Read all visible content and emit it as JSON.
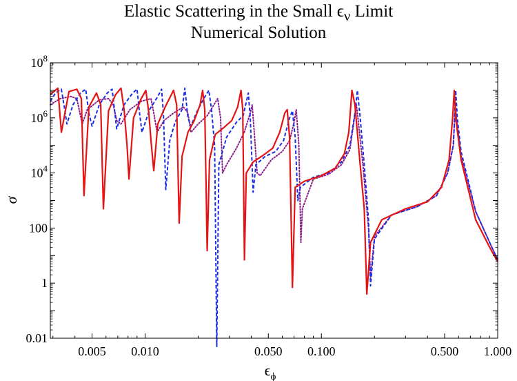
{
  "titles": {
    "line1_prefix": "Elastic Scattering in the Small ",
    "line1_symbol": "ϵ",
    "line1_sub": "ν",
    "line1_suffix": " Limit",
    "line2": "Numerical Solution"
  },
  "chart_data": {
    "type": "line",
    "title": "Elastic Scattering in the Small ϵ_ν Limit — Numerical Solution",
    "xlabel_symbol": "ϵ",
    "xlabel_sub": "ϕ",
    "ylabel": "σ",
    "xscale": "log",
    "yscale": "log",
    "xlim": [
      0.0029,
      1.0
    ],
    "ylim": [
      0.01,
      100000000
    ],
    "x_ticks": [
      {
        "value": 0.005,
        "label": "0.005"
      },
      {
        "value": 0.01,
        "label": "0.010"
      },
      {
        "value": 0.05,
        "label": "0.050"
      },
      {
        "value": 0.1,
        "label": "0.100"
      },
      {
        "value": 0.5,
        "label": "0.500"
      },
      {
        "value": 1.0,
        "label": "1.000"
      }
    ],
    "y_ticks": [
      {
        "value": 0.01,
        "label": "0.01",
        "base": "",
        "exp": ""
      },
      {
        "value": 1,
        "label": "1",
        "base": "",
        "exp": ""
      },
      {
        "value": 100,
        "label": "100",
        "base": "",
        "exp": ""
      },
      {
        "value": 10000,
        "label": "",
        "base": "10",
        "exp": "4"
      },
      {
        "value": 1000000,
        "label": "",
        "base": "10",
        "exp": "6"
      },
      {
        "value": 100000000,
        "label": "",
        "base": "10",
        "exp": "8"
      }
    ],
    "series": [
      {
        "name": "red solid",
        "color": "#e51414",
        "dash": "solid",
        "points": [
          [
            0.0029,
            7000000
          ],
          [
            0.0032,
            12000000
          ],
          [
            0.00335,
            300000
          ],
          [
            0.0037,
            9000000
          ],
          [
            0.0041,
            11000000
          ],
          [
            0.00435,
            5000000
          ],
          [
            0.0045,
            1500
          ],
          [
            0.0048,
            2500000
          ],
          [
            0.0053,
            8000000
          ],
          [
            0.0056,
            3000000
          ],
          [
            0.0058,
            500
          ],
          [
            0.0062,
            1800000
          ],
          [
            0.0068,
            7000000
          ],
          [
            0.0073,
            12000000
          ],
          [
            0.0076,
            2000000
          ],
          [
            0.0079,
            100000
          ],
          [
            0.0081,
            6000
          ],
          [
            0.0086,
            1000000
          ],
          [
            0.0095,
            5000000
          ],
          [
            0.0101,
            10000000
          ],
          [
            0.0105,
            1500000
          ],
          [
            0.0108,
            150000
          ],
          [
            0.0112,
            12000
          ],
          [
            0.0118,
            600000
          ],
          [
            0.013,
            2500000
          ],
          [
            0.0145,
            10000000
          ],
          [
            0.0151,
            3000000
          ],
          [
            0.0156,
            150
          ],
          [
            0.0162,
            40000
          ],
          [
            0.0175,
            300000
          ],
          [
            0.019,
            800000
          ],
          [
            0.0205,
            3000000
          ],
          [
            0.0212,
            10000000
          ],
          [
            0.0218,
            2000000
          ],
          [
            0.0225,
            15
          ],
          [
            0.0232,
            30000
          ],
          [
            0.025,
            250000
          ],
          [
            0.028,
            450000
          ],
          [
            0.031,
            800000
          ],
          [
            0.0335,
            2500000
          ],
          [
            0.035,
            10000000
          ],
          [
            0.0358,
            2000000
          ],
          [
            0.0366,
            7
          ],
          [
            0.0375,
            10000
          ],
          [
            0.041,
            25000
          ],
          [
            0.047,
            45000
          ],
          [
            0.053,
            80000
          ],
          [
            0.058,
            300000
          ],
          [
            0.062,
            1500000
          ],
          [
            0.064,
            2000000
          ],
          [
            0.066,
            200000
          ],
          [
            0.0685,
            0.7
          ],
          [
            0.071,
            3000
          ],
          [
            0.08,
            5000
          ],
          [
            0.1,
            8000
          ],
          [
            0.12,
            15000
          ],
          [
            0.135,
            50000
          ],
          [
            0.143,
            300000
          ],
          [
            0.149,
            10000000
          ],
          [
            0.155,
            3000000
          ],
          [
            0.165,
            30000
          ],
          [
            0.175,
            500
          ],
          [
            0.181,
            0.4
          ],
          [
            0.19,
            30
          ],
          [
            0.22,
            200
          ],
          [
            0.3,
            500
          ],
          [
            0.4,
            900
          ],
          [
            0.48,
            3000
          ],
          [
            0.53,
            30000
          ],
          [
            0.555,
            1000000
          ],
          [
            0.567,
            10000000
          ],
          [
            0.58,
            800000
          ],
          [
            0.62,
            30000
          ],
          [
            0.75,
            200
          ],
          [
            0.9,
            20
          ],
          [
            1.0,
            6
          ]
        ]
      },
      {
        "name": "blue dashed",
        "color": "#1a2ee6",
        "dash": "dashed",
        "points": [
          [
            0.0029,
            4000000
          ],
          [
            0.0031,
            8000000
          ],
          [
            0.00335,
            11000000
          ],
          [
            0.0035,
            2000000
          ],
          [
            0.0036,
            600000
          ],
          [
            0.0039,
            3000000
          ],
          [
            0.0043,
            8000000
          ],
          [
            0.0046,
            11000000
          ],
          [
            0.0048,
            1500000
          ],
          [
            0.005,
            500000
          ],
          [
            0.0055,
            3000000
          ],
          [
            0.0061,
            8000000
          ],
          [
            0.0065,
            11000000
          ],
          [
            0.0067,
            2000000
          ],
          [
            0.0069,
            400000
          ],
          [
            0.0076,
            3000000
          ],
          [
            0.0085,
            8000000
          ],
          [
            0.009,
            11000000
          ],
          [
            0.0093,
            1500000
          ],
          [
            0.0096,
            300000
          ],
          [
            0.0106,
            2000000
          ],
          [
            0.0118,
            6000000
          ],
          [
            0.0124,
            11000000
          ],
          [
            0.0127,
            1500000
          ],
          [
            0.0131,
            2500
          ],
          [
            0.0138,
            150000
          ],
          [
            0.0148,
            700000
          ],
          [
            0.0162,
            2000000
          ],
          [
            0.0168,
            12000000
          ],
          [
            0.0175,
            1000000
          ],
          [
            0.0182,
            500000
          ],
          [
            0.0195,
            1500000
          ],
          [
            0.0215,
            5000000
          ],
          [
            0.023,
            10000000
          ],
          [
            0.0238,
            2000000
          ],
          [
            0.0248,
            100000
          ],
          [
            0.0255,
            0.005
          ],
          [
            0.0262,
            20000
          ],
          [
            0.029,
            200000
          ],
          [
            0.033,
            700000
          ],
          [
            0.036,
            1200000
          ],
          [
            0.0385,
            8000000
          ],
          [
            0.0395,
            1000000
          ],
          [
            0.041,
            2000
          ],
          [
            0.0425,
            20000
          ],
          [
            0.048,
            40000
          ],
          [
            0.055,
            60000
          ],
          [
            0.061,
            150000
          ],
          [
            0.066,
            1000000
          ],
          [
            0.0685,
            1800000
          ],
          [
            0.071,
            200000
          ],
          [
            0.0735,
            1000
          ],
          [
            0.076,
            3000
          ],
          [
            0.09,
            7000
          ],
          [
            0.11,
            10000
          ],
          [
            0.13,
            25000
          ],
          [
            0.145,
            100000
          ],
          [
            0.155,
            1500000
          ],
          [
            0.16,
            10000000
          ],
          [
            0.166,
            1000000
          ],
          [
            0.175,
            20000
          ],
          [
            0.185,
            200
          ],
          [
            0.19,
            0.8
          ],
          [
            0.2,
            40
          ],
          [
            0.25,
            300
          ],
          [
            0.35,
            600
          ],
          [
            0.45,
            1500
          ],
          [
            0.52,
            10000
          ],
          [
            0.56,
            100000
          ],
          [
            0.57,
            1000000
          ],
          [
            0.578,
            10000000
          ],
          [
            0.59,
            1000000
          ],
          [
            0.62,
            60000
          ],
          [
            0.75,
            400
          ],
          [
            0.9,
            30
          ],
          [
            1.0,
            7
          ]
        ]
      },
      {
        "name": "purple dotted",
        "color": "#8a1e8a",
        "dash": "dotted",
        "points": [
          [
            0.0029,
            3000000
          ],
          [
            0.0033,
            5000000
          ],
          [
            0.0038,
            6000000
          ],
          [
            0.0041,
            5000000
          ],
          [
            0.0044,
            600000
          ],
          [
            0.0047,
            2000000
          ],
          [
            0.0055,
            4500000
          ],
          [
            0.0062,
            5000000
          ],
          [
            0.0066,
            3000000
          ],
          [
            0.0069,
            800000
          ],
          [
            0.0073,
            600000
          ],
          [
            0.0082,
            2000000
          ],
          [
            0.0095,
            4000000
          ],
          [
            0.0108,
            5000000
          ],
          [
            0.0112,
            1500000
          ],
          [
            0.0117,
            300000
          ],
          [
            0.0128,
            800000
          ],
          [
            0.0145,
            1500000
          ],
          [
            0.0165,
            2500000
          ],
          [
            0.0175,
            1500000
          ],
          [
            0.0182,
            300000
          ],
          [
            0.02,
            600000
          ],
          [
            0.0225,
            1200000
          ],
          [
            0.0258,
            5000000
          ],
          [
            0.0268,
            1000000
          ],
          [
            0.0275,
            10000
          ],
          [
            0.029,
            20000
          ],
          [
            0.033,
            80000
          ],
          [
            0.0365,
            300000
          ],
          [
            0.0395,
            1500000
          ],
          [
            0.0405,
            3000000
          ],
          [
            0.0418,
            200000
          ],
          [
            0.0432,
            10000
          ],
          [
            0.045,
            8000
          ],
          [
            0.052,
            30000
          ],
          [
            0.06,
            60000
          ],
          [
            0.066,
            150000
          ],
          [
            0.07,
            700000
          ],
          [
            0.072,
            2000000
          ],
          [
            0.0745,
            100000
          ],
          [
            0.0765,
            30
          ],
          [
            0.078,
            500
          ],
          [
            0.09,
            6000
          ],
          [
            0.11,
            9000
          ],
          [
            0.13,
            20000
          ],
          [
            0.145,
            70000
          ],
          [
            0.154,
            1000000
          ],
          [
            0.158,
            3000000
          ],
          [
            0.163,
            500000
          ],
          [
            0.172,
            20000
          ],
          [
            0.185,
            100
          ],
          [
            0.19,
            1.5
          ],
          [
            0.2,
            50
          ],
          [
            0.25,
            300
          ],
          [
            0.35,
            600
          ],
          [
            0.45,
            1500
          ],
          [
            0.52,
            10000
          ],
          [
            0.56,
            100000
          ],
          [
            0.57,
            1000000
          ],
          [
            0.575,
            3000000
          ],
          [
            0.585,
            800000
          ],
          [
            0.62,
            40000
          ],
          [
            0.75,
            400
          ],
          [
            0.9,
            30
          ],
          [
            1.0,
            7
          ]
        ]
      }
    ]
  }
}
